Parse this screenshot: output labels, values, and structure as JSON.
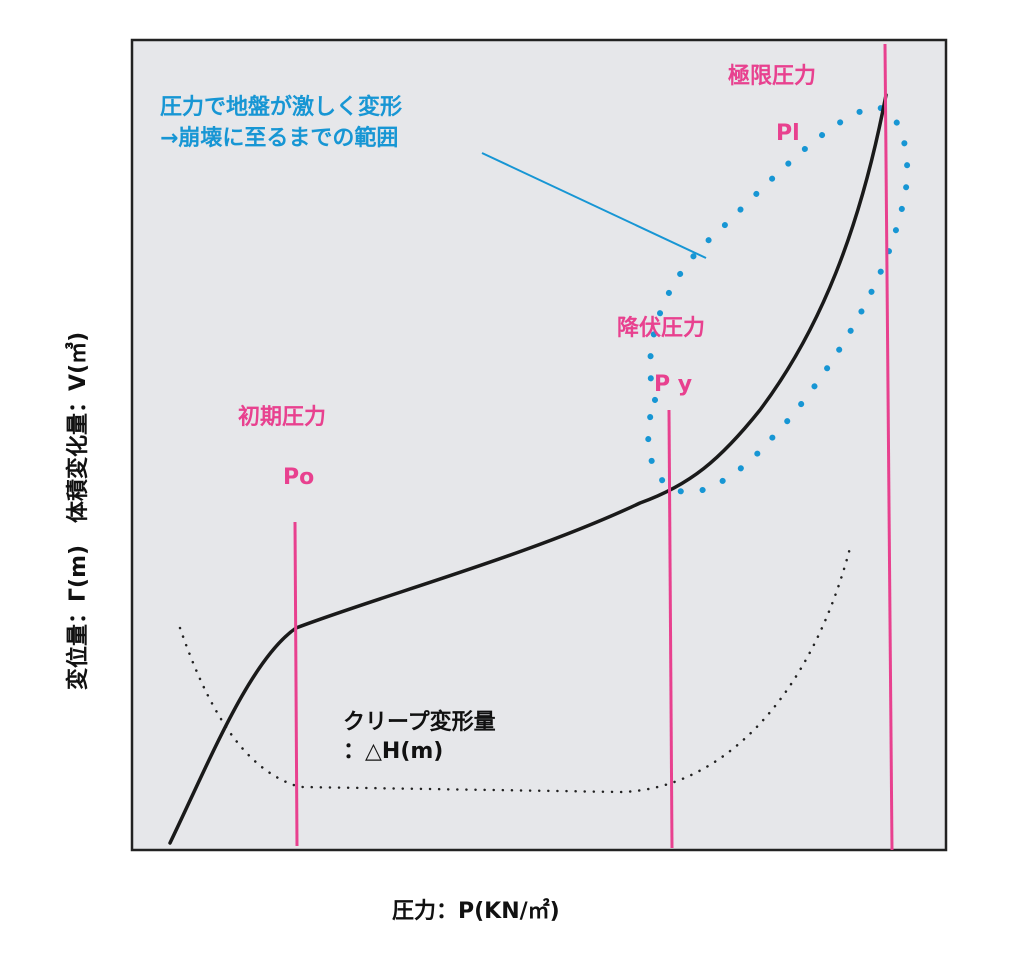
{
  "colors": {
    "plot_background": "#e6e7ea",
    "frame": "#222222",
    "curve": "#1a1a1a",
    "marker_lines": "#e8418f",
    "annotation": "#1796d4",
    "creep_dots": "#222222"
  },
  "axes": {
    "x_label": "圧力：P(KN/㎡)",
    "y_label": "変位量：Γ(m)　体積変化量：V(㎥)"
  },
  "markers": [
    {
      "id": "initial",
      "title": "初期圧力",
      "symbol": "Po"
    },
    {
      "id": "yield",
      "title": "降伏圧力",
      "symbol": "P y"
    },
    {
      "id": "ultimate",
      "title": "極限圧力",
      "symbol": "Pl"
    }
  ],
  "annotation": {
    "line1": "圧力で地盤が激しく変形",
    "line2": "→崩壊に至るまでの範囲"
  },
  "creep": {
    "line1": "クリープ変形量",
    "line2": "：△H(m)"
  }
}
